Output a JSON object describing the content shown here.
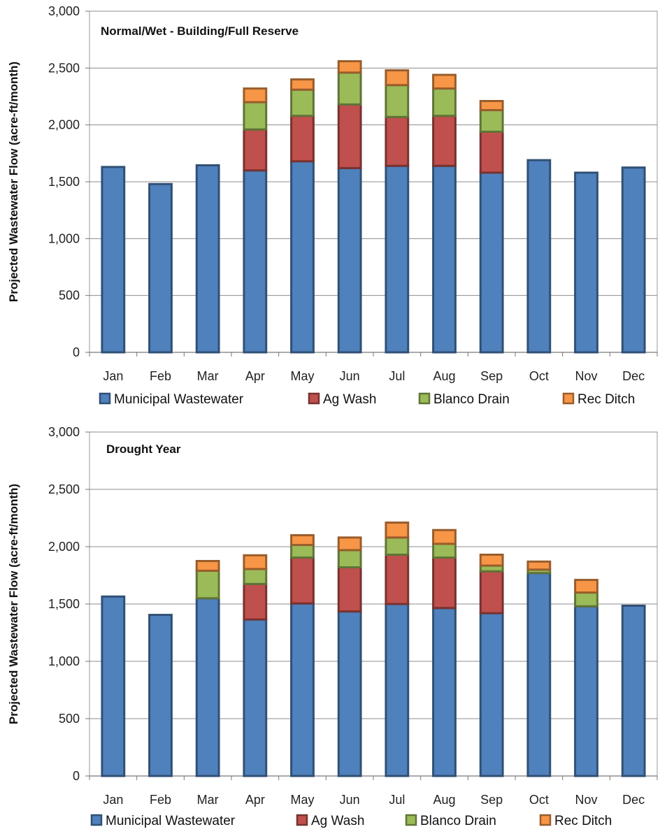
{
  "chart_data": [
    {
      "type": "bar",
      "stacked": true,
      "title": "Normal/Wet - Building/Full Reserve",
      "ylabel": "Projected Wastewater Flow (acre-ft/month)",
      "xlabel": "",
      "ylim": [
        0,
        3000
      ],
      "yticks": [
        0,
        500,
        1000,
        1500,
        2000,
        2500,
        3000
      ],
      "ytick_labels": [
        "0",
        "500",
        "1,000",
        "1,500",
        "2,000",
        "2,500",
        "3,000"
      ],
      "grid": true,
      "legend_position": "bottom",
      "categories": [
        "Jan",
        "Feb",
        "Mar",
        "Apr",
        "May",
        "Jun",
        "Jul",
        "Aug",
        "Sep",
        "Oct",
        "Nov",
        "Dec"
      ],
      "series": [
        {
          "name": "Municipal Wastewater",
          "color": "#4f81bd",
          "values": [
            1630,
            1480,
            1645,
            1600,
            1680,
            1620,
            1640,
            1640,
            1580,
            1690,
            1580,
            1625
          ]
        },
        {
          "name": "Ag Wash",
          "color": "#c0504d",
          "values": [
            0,
            0,
            0,
            360,
            400,
            560,
            430,
            440,
            360,
            0,
            0,
            0
          ]
        },
        {
          "name": "Blanco Drain",
          "color": "#9bbb59",
          "values": [
            0,
            0,
            0,
            240,
            230,
            280,
            280,
            240,
            190,
            0,
            0,
            0
          ]
        },
        {
          "name": "Rec Ditch",
          "color": "#f79646",
          "values": [
            0,
            0,
            0,
            120,
            90,
            100,
            130,
            120,
            80,
            0,
            0,
            0
          ]
        }
      ]
    },
    {
      "type": "bar",
      "stacked": true,
      "title": "Drought Year",
      "ylabel": "Projected Wastewater Flow (acre-ft/month)",
      "xlabel": "",
      "ylim": [
        0,
        3000
      ],
      "yticks": [
        0,
        500,
        1000,
        1500,
        2000,
        2500,
        3000
      ],
      "ytick_labels": [
        "0",
        "500",
        "1,000",
        "1,500",
        "2,000",
        "2,500",
        "3,000"
      ],
      "grid": true,
      "legend_position": "bottom",
      "categories": [
        "Jan",
        "Feb",
        "Mar",
        "Apr",
        "May",
        "Jun",
        "Jul",
        "Aug",
        "Sep",
        "Oct",
        "Nov",
        "Dec"
      ],
      "series": [
        {
          "name": "Municipal Wastewater",
          "color": "#4f81bd",
          "values": [
            1565,
            1405,
            1550,
            1365,
            1505,
            1435,
            1500,
            1465,
            1420,
            1770,
            1480,
            1485
          ]
        },
        {
          "name": "Ag Wash",
          "color": "#c0504d",
          "values": [
            0,
            0,
            0,
            310,
            400,
            385,
            430,
            440,
            365,
            0,
            0,
            0
          ]
        },
        {
          "name": "Blanco Drain",
          "color": "#9bbb59",
          "values": [
            0,
            0,
            240,
            130,
            110,
            150,
            150,
            120,
            50,
            30,
            120,
            0
          ]
        },
        {
          "name": "Rec Ditch",
          "color": "#f79646",
          "values": [
            0,
            0,
            85,
            120,
            85,
            110,
            130,
            120,
            95,
            70,
            110,
            0
          ]
        }
      ]
    }
  ]
}
